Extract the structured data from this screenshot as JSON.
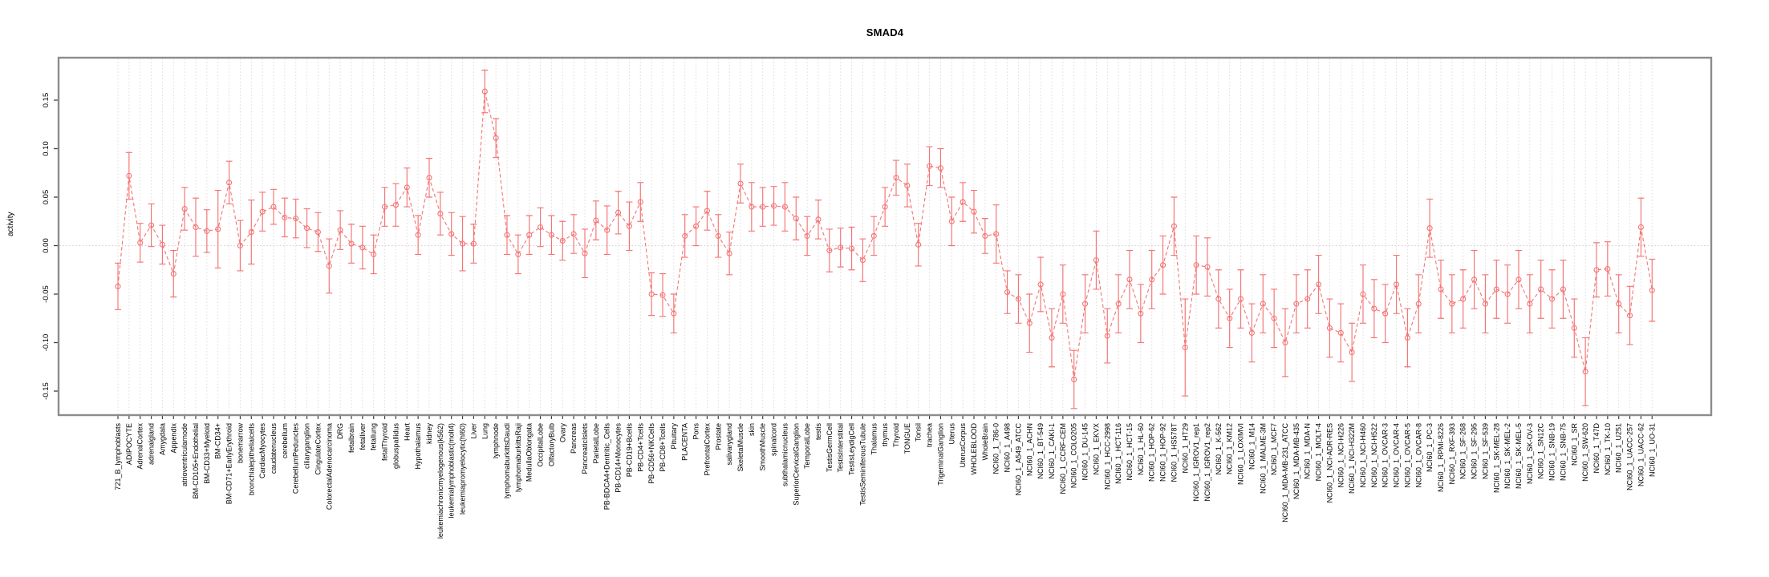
{
  "title": "SMAD4",
  "y_axis_title": "activity",
  "colors": {
    "series": "#f47474",
    "grid_vertical": "#e2d8d8",
    "zero_line": "#d4cccc",
    "box": "#8c8c8c",
    "tick": "#404040",
    "text": "#000000",
    "background": "#ffffff"
  },
  "chart_data": {
    "type": "line",
    "title": "SMAD4",
    "xlabel": "",
    "ylabel": "activity",
    "ylim": [
      -0.18,
      0.185
    ],
    "yticks": [
      -0.15,
      -0.1,
      -0.05,
      0.0,
      0.05,
      0.1,
      0.15
    ],
    "grid": "vertical dotted gridline per category, dotted horizontal line at 0",
    "legend_position": "none",
    "marker": "open-circle",
    "line_style": "dashed",
    "error_bars": true,
    "categories": [
      "721_B_lymphoblasts",
      "ADIPOCYTE",
      "AdrenalCortex",
      "adrenalgland",
      "Amygdala",
      "Appendix",
      "atrioventricularnode",
      "BM-CD105+Endothelial",
      "BM-CD33+Myeloid",
      "BM-CD34+",
      "BM-CD71+EarlyErythroid",
      "bonemarrow",
      "bronchialepithelialcells",
      "CardiacMyocytes",
      "caudatenucleus",
      "cerebellum",
      "CerebellumPeduncles",
      "ciliaryganglion",
      "CingulateCortex",
      "ColorectalAdenocarcinoma",
      "DRG",
      "fetalbrain",
      "fetalliver",
      "fetallung",
      "fetalThyroid",
      "globuspallidus",
      "Heart",
      "Hypothalamus",
      "kidney",
      "leukemiachronicmyelogenous(k562)",
      "leukemialymphoblastic(molt4)",
      "leukemiapromyelocytic(hl60)",
      "Liver",
      "Lung",
      "lymphnode",
      "lymphomaburkittsDaudi",
      "lymphomaburkittsRaji",
      "MedullaOblongata",
      "OccipitalLobe",
      "OlfactoryBulb",
      "Ovary",
      "Pancreas",
      "PancreaticIslets",
      "ParietalLobe",
      "PB-BDCA4+Dentritic_Cells",
      "PB-CD14+Monocytes",
      "PB-CD19+Bcells",
      "PB-CD4+Tcells",
      "PB-CD56+NKCells",
      "PB-CD8+Tcells",
      "Pituitary",
      "PLACENTA",
      "Pons",
      "PrefrontalCortex",
      "Prostate",
      "salivarygland",
      "SkeletalMuscle",
      "skin",
      "SmoothMuscle",
      "spinalcord",
      "subthalamicnucleus",
      "SuperiorCervicalGanglion",
      "TemporalLobe",
      "testis",
      "TestisGermCell",
      "TestisInterstitial",
      "TestisLeydigCell",
      "TestisSeminiferousTubule",
      "Thalamus",
      "thymus",
      "Thyroid",
      "TONGUE",
      "Tonsil",
      "trachea",
      "TrigeminalGanglion",
      "Uterus",
      "UterusCorpus",
      "WHOLEBLOOD",
      "WholeBrain",
      "NCI60_1_786-0",
      "NCI60_1_A498",
      "NCI60_1_A549_ATCC",
      "NCI60_1_ACHN",
      "NCI60_1_BT-549",
      "NCI60_1_CAKI-1",
      "NCI60_1_CCRF-CEM",
      "NCI60_1_COLO205",
      "NCI60_1_DU-145",
      "NCI60_1_EKVX",
      "NCI60_1_HCC-2998",
      "NCI60_1_HCT-116",
      "NCI60_1_HCT-15",
      "NCI60_1_HL-60",
      "NCI60_1_HOP-62",
      "NCI60_1_HOP-92",
      "NCI60_1_HS578T",
      "NCI60_1_HT29",
      "NCI60_1_IGROV1_rep1",
      "NCI60_1_IGROV1_rep2",
      "NCI60_1_K-562",
      "NCI60_1_KM12",
      "NCI60_1_LOXIMVI",
      "NCI60_1_M14",
      "NCI60_1_MALME-3M",
      "NCI60_1_MCF7",
      "NCI60_1_MDA-MB-231_ATCC",
      "NCI60_1_MDA-MB-435",
      "NCI60_1_MDA-N",
      "NCI60_1_MOLT-4",
      "NCI60_1_NCI-ADR-RES",
      "NCI60_1_NCI-H226",
      "NCI60_1_NCI-H322M",
      "NCI60_1_NCI-H460",
      "NCI60_1_NCI-H522",
      "NCI60_1_OVCAR-3",
      "NCI60_1_OVCAR-4",
      "NCI60_1_OVCAR-5",
      "NCI60_1_OVCAR-8",
      "NCI60_1_PC-3",
      "NCI60_1_RPMI-8226",
      "NCI60_1_RXF-393",
      "NCI60_1_SF-268",
      "NCI60_1_SF-295",
      "NCI60_1_SF-539",
      "NCI60_1_SK-MEL-28",
      "NCI60_1_SK-MEL-2",
      "NCI60_1_SK-MEL-5",
      "NCI60_1_SK-OV-3",
      "NCI60_1_SN12C",
      "NCI60_1_SNB-19",
      "NCI60_1_SNB-75",
      "NCI60_1_SR",
      "NCI60_1_SW-620",
      "NCI60_1_T47D",
      "NCI60_1_TK-10",
      "NCI60_1_U251",
      "NCI60_1_UACC-257",
      "NCI60_1_UACC-62",
      "NCI60_1_UO-31"
    ],
    "values": [
      -0.042,
      0.072,
      0.003,
      0.021,
      0.001,
      -0.029,
      0.038,
      0.019,
      0.015,
      0.017,
      0.065,
      0.0,
      0.014,
      0.035,
      0.04,
      0.029,
      0.028,
      0.018,
      0.014,
      -0.021,
      0.016,
      0.002,
      -0.002,
      -0.009,
      0.04,
      0.042,
      0.06,
      0.011,
      0.07,
      0.033,
      0.012,
      0.002,
      0.002,
      0.159,
      0.111,
      0.011,
      -0.009,
      0.011,
      0.019,
      0.011,
      0.005,
      0.012,
      -0.008,
      0.026,
      0.016,
      0.034,
      0.02,
      0.045,
      -0.05,
      -0.051,
      -0.07,
      0.01,
      0.02,
      0.036,
      0.01,
      -0.008,
      0.064,
      0.04,
      0.04,
      0.041,
      0.04,
      0.028,
      0.01,
      0.027,
      -0.005,
      -0.002,
      -0.003,
      -0.015,
      0.01,
      0.04,
      0.07,
      0.062,
      0.001,
      0.082,
      0.08,
      0.025,
      0.045,
      0.035,
      0.01,
      0.012,
      -0.048,
      -0.055,
      -0.08,
      -0.04,
      -0.095,
      -0.05,
      -0.138,
      -0.06,
      -0.015,
      -0.093,
      -0.06,
      -0.035,
      -0.07,
      -0.035,
      -0.02,
      0.02,
      -0.105,
      -0.02,
      -0.022,
      -0.055,
      -0.075,
      -0.055,
      -0.09,
      -0.06,
      -0.075,
      -0.1,
      -0.06,
      -0.055,
      -0.04,
      -0.085,
      -0.09,
      -0.11,
      -0.05,
      -0.065,
      -0.07,
      -0.04,
      -0.095,
      -0.06,
      0.018,
      -0.045,
      -0.06,
      -0.055,
      -0.035,
      -0.06,
      -0.045,
      -0.05,
      -0.035,
      -0.06,
      -0.045,
      -0.055,
      -0.045,
      -0.085,
      -0.13,
      -0.025,
      -0.024,
      -0.06,
      -0.072,
      0.019,
      -0.046
    ],
    "errors": [
      0.024,
      0.024,
      0.02,
      0.022,
      0.02,
      0.024,
      0.022,
      0.03,
      0.022,
      0.04,
      0.022,
      0.026,
      0.033,
      0.02,
      0.018,
      0.02,
      0.02,
      0.02,
      0.02,
      0.028,
      0.02,
      0.02,
      0.022,
      0.02,
      0.02,
      0.022,
      0.02,
      0.02,
      0.02,
      0.022,
      0.022,
      0.028,
      0.02,
      0.022,
      0.02,
      0.02,
      0.02,
      0.02,
      0.02,
      0.02,
      0.02,
      0.02,
      0.025,
      0.02,
      0.025,
      0.022,
      0.025,
      0.02,
      0.022,
      0.022,
      0.02,
      0.022,
      0.02,
      0.02,
      0.022,
      0.022,
      0.02,
      0.025,
      0.02,
      0.02,
      0.025,
      0.022,
      0.02,
      0.02,
      0.022,
      0.02,
      0.022,
      0.022,
      0.02,
      0.02,
      0.018,
      0.022,
      0.022,
      0.02,
      0.02,
      0.025,
      0.02,
      0.022,
      0.018,
      0.03,
      0.022,
      0.025,
      0.03,
      0.028,
      0.03,
      0.03,
      0.03,
      0.03,
      0.03,
      0.028,
      0.03,
      0.03,
      0.03,
      0.03,
      0.03,
      0.03,
      0.05,
      0.03,
      0.03,
      0.03,
      0.03,
      0.03,
      0.03,
      0.03,
      0.03,
      0.035,
      0.03,
      0.03,
      0.03,
      0.03,
      0.03,
      0.03,
      0.03,
      0.03,
      0.03,
      0.03,
      0.03,
      0.03,
      0.03,
      0.03,
      0.03,
      0.03,
      0.03,
      0.03,
      0.03,
      0.03,
      0.03,
      0.03,
      0.03,
      0.03,
      0.03,
      0.03,
      0.035,
      0.028,
      0.028,
      0.03,
      0.03,
      0.03,
      0.032
    ]
  }
}
